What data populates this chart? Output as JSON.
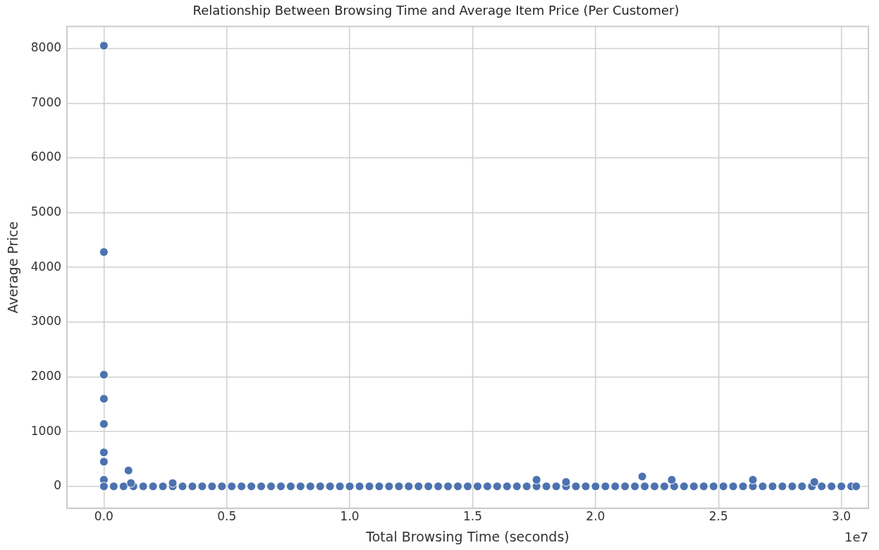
{
  "chart_data": {
    "type": "scatter",
    "title": "Relationship Between Browsing Time and Average Item Price (Per Customer)",
    "xlabel": "Total Browsing Time (seconds)",
    "ylabel": "Average Price",
    "annotations": [
      "1e7"
    ],
    "series": [
      {
        "color": "#4c72b0",
        "x": [
          0.04,
          0.08,
          0.12,
          0.16,
          0.2,
          0.24,
          0.28,
          0.32,
          0.36,
          0.4,
          0.44,
          0.48,
          0.52,
          0.56,
          0.6,
          0.64,
          0.68,
          0.72,
          0.76,
          0.8,
          0.84,
          0.88,
          0.92,
          0.96,
          1.0,
          1.04,
          1.08,
          1.12,
          1.16,
          1.2,
          1.24,
          1.28,
          1.32,
          1.36,
          1.4,
          1.44,
          1.48,
          1.52,
          1.56,
          1.6,
          1.64,
          1.68,
          1.72,
          1.76,
          1.8,
          1.84,
          1.88,
          1.92,
          1.96,
          2.0,
          2.04,
          2.08,
          2.12,
          2.16,
          2.2,
          2.24,
          2.28,
          2.32,
          2.36,
          2.4,
          2.44,
          2.48,
          2.52,
          2.56,
          2.6,
          2.64,
          2.68,
          2.72,
          2.76,
          2.8,
          2.84,
          2.88,
          2.92,
          2.96,
          3.0,
          3.04,
          3.06,
          0,
          0,
          0,
          0,
          0,
          0,
          0,
          0,
          0,
          0.1,
          0.11,
          0.28,
          1.76,
          1.88,
          2.19,
          2.31,
          2.64,
          2.89
        ],
        "values": [
          0,
          0,
          0,
          0,
          0,
          0,
          0,
          0,
          0,
          0,
          0,
          0,
          0,
          0,
          0,
          0,
          0,
          0,
          0,
          0,
          0,
          0,
          0,
          0,
          0,
          0,
          0,
          0,
          0,
          0,
          0,
          0,
          0,
          0,
          0,
          0,
          0,
          0,
          0,
          0,
          0,
          0,
          0,
          0,
          0,
          0,
          0,
          0,
          0,
          0,
          0,
          0,
          0,
          0,
          0,
          0,
          0,
          0,
          0,
          0,
          0,
          0,
          0,
          0,
          0,
          0,
          0,
          0,
          0,
          0,
          0,
          0,
          0,
          0,
          0,
          0,
          0,
          8050,
          4280,
          2040,
          1600,
          1140,
          620,
          450,
          120,
          0,
          290,
          60,
          60,
          120,
          80,
          180,
          120,
          120,
          80
        ]
      }
    ],
    "xlim": [
      -0.15,
      3.11
    ],
    "ylim": [
      -400,
      8400
    ],
    "xticks": [
      {
        "value": 0,
        "label": "0.0"
      },
      0.5,
      {
        "value": 1,
        "label": "1.0"
      },
      1.5,
      {
        "value": 2,
        "label": "2.0"
      },
      2.5,
      {
        "value": 3,
        "label": "3.0"
      }
    ],
    "yticks": [
      0,
      1000,
      2000,
      3000,
      4000,
      5000,
      6000,
      7000,
      8000
    ],
    "grid": true,
    "legend": false,
    "marker": "circle"
  }
}
